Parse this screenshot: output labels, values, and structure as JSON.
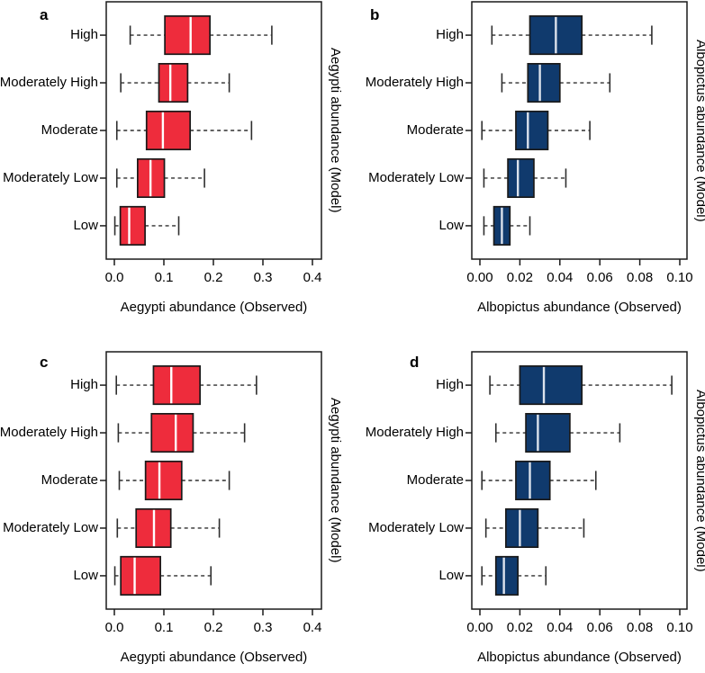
{
  "figure": {
    "background": "#ffffff",
    "axis_color": "#1a1a1a",
    "whisker_color": "#2e2e2e"
  },
  "chart_data": [
    {
      "type": "boxplot",
      "orientation": "horizontal",
      "panel_letter": "a",
      "box_color": "#ee2c3c",
      "median_color": "#ffffff",
      "xlabel": "Aegypti abundance (Observed)",
      "ylabel_right": "Aegypti abundance (Model)",
      "xlim": [
        0.0,
        0.4
      ],
      "grid": false,
      "xticks": [
        "0.0",
        "0.1",
        "0.2",
        "0.3",
        "0.4"
      ],
      "xtick_values": [
        0.0,
        0.1,
        0.2,
        0.3,
        0.4
      ],
      "categories": [
        "High",
        "Moderately High",
        "Moderate",
        "Moderately Low",
        "Low"
      ],
      "boxes": [
        {
          "category": "High",
          "whisker_low": 0.032,
          "q1": 0.102,
          "median": 0.154,
          "q3": 0.193,
          "whisker_high": 0.318
        },
        {
          "category": "Moderately High",
          "whisker_low": 0.013,
          "q1": 0.09,
          "median": 0.113,
          "q3": 0.148,
          "whisker_high": 0.232
        },
        {
          "category": "Moderate",
          "whisker_low": 0.005,
          "q1": 0.065,
          "median": 0.098,
          "q3": 0.153,
          "whisker_high": 0.277
        },
        {
          "category": "Moderately Low",
          "whisker_low": 0.005,
          "q1": 0.047,
          "median": 0.073,
          "q3": 0.101,
          "whisker_high": 0.182
        },
        {
          "category": "Low",
          "whisker_low": 0.001,
          "q1": 0.012,
          "median": 0.03,
          "q3": 0.062,
          "whisker_high": 0.13
        }
      ]
    },
    {
      "type": "boxplot",
      "orientation": "horizontal",
      "panel_letter": "b",
      "box_color": "#103a6d",
      "median_color": "#dce2ec",
      "xlabel": "Albopictus abundance (Observed)",
      "ylabel_right": "Albopictus abundance (Model)",
      "xlim": [
        0.0,
        0.1
      ],
      "grid": false,
      "xticks": [
        "0.00",
        "0.02",
        "0.04",
        "0.06",
        "0.08",
        "0.10"
      ],
      "xtick_values": [
        0.0,
        0.02,
        0.04,
        0.06,
        0.08,
        0.1
      ],
      "categories": [
        "High",
        "Moderately High",
        "Moderate",
        "Moderately Low",
        "Low"
      ],
      "boxes": [
        {
          "category": "High",
          "whisker_low": 0.006,
          "q1": 0.025,
          "median": 0.038,
          "q3": 0.051,
          "whisker_high": 0.086
        },
        {
          "category": "Moderately High",
          "whisker_low": 0.011,
          "q1": 0.024,
          "median": 0.03,
          "q3": 0.04,
          "whisker_high": 0.065
        },
        {
          "category": "Moderate",
          "whisker_low": 0.001,
          "q1": 0.018,
          "median": 0.024,
          "q3": 0.034,
          "whisker_high": 0.055
        },
        {
          "category": "Moderately Low",
          "whisker_low": 0.002,
          "q1": 0.014,
          "median": 0.019,
          "q3": 0.027,
          "whisker_high": 0.043
        },
        {
          "category": "Low",
          "whisker_low": 0.002,
          "q1": 0.007,
          "median": 0.011,
          "q3": 0.015,
          "whisker_high": 0.025
        }
      ]
    },
    {
      "type": "boxplot",
      "orientation": "horizontal",
      "panel_letter": "c",
      "box_color": "#ee2c3c",
      "median_color": "#ffffff",
      "xlabel": "Aegypti abundance (Observed)",
      "ylabel_right": "Aegypti abundance (Model)",
      "xlim": [
        0.0,
        0.4
      ],
      "grid": false,
      "xticks": [
        "0.0",
        "0.1",
        "0.2",
        "0.3",
        "0.4"
      ],
      "xtick_values": [
        0.0,
        0.1,
        0.2,
        0.3,
        0.4
      ],
      "categories": [
        "High",
        "Moderately High",
        "Moderate",
        "Moderately Low",
        "Low"
      ],
      "boxes": [
        {
          "category": "High",
          "whisker_low": 0.004,
          "q1": 0.079,
          "median": 0.115,
          "q3": 0.173,
          "whisker_high": 0.287
        },
        {
          "category": "Moderately High",
          "whisker_low": 0.008,
          "q1": 0.075,
          "median": 0.124,
          "q3": 0.159,
          "whisker_high": 0.263
        },
        {
          "category": "Moderate",
          "whisker_low": 0.01,
          "q1": 0.063,
          "median": 0.091,
          "q3": 0.136,
          "whisker_high": 0.232
        },
        {
          "category": "Moderately Low",
          "whisker_low": 0.006,
          "q1": 0.044,
          "median": 0.08,
          "q3": 0.114,
          "whisker_high": 0.212
        },
        {
          "category": "Low",
          "whisker_low": 0.001,
          "q1": 0.013,
          "median": 0.041,
          "q3": 0.093,
          "whisker_high": 0.195
        }
      ]
    },
    {
      "type": "boxplot",
      "orientation": "horizontal",
      "panel_letter": "d",
      "box_color": "#103a6d",
      "median_color": "#dce2ec",
      "xlabel": "Albopictus abundance (Observed)",
      "ylabel_right": "Albopictus abundance (Model)",
      "xlim": [
        0.0,
        0.1
      ],
      "grid": false,
      "xticks": [
        "0.00",
        "0.02",
        "0.04",
        "0.06",
        "0.08",
        "0.10"
      ],
      "xtick_values": [
        0.0,
        0.02,
        0.04,
        0.06,
        0.08,
        0.1
      ],
      "categories": [
        "High",
        "Moderately High",
        "Moderate",
        "Moderately Low",
        "Low"
      ],
      "boxes": [
        {
          "category": "High",
          "whisker_low": 0.005,
          "q1": 0.02,
          "median": 0.032,
          "q3": 0.051,
          "whisker_high": 0.096
        },
        {
          "category": "Moderately High",
          "whisker_low": 0.008,
          "q1": 0.023,
          "median": 0.029,
          "q3": 0.045,
          "whisker_high": 0.07
        },
        {
          "category": "Moderate",
          "whisker_low": 0.001,
          "q1": 0.018,
          "median": 0.025,
          "q3": 0.035,
          "whisker_high": 0.058
        },
        {
          "category": "Moderately Low",
          "whisker_low": 0.003,
          "q1": 0.013,
          "median": 0.02,
          "q3": 0.029,
          "whisker_high": 0.052
        },
        {
          "category": "Low",
          "whisker_low": 0.001,
          "q1": 0.008,
          "median": 0.012,
          "q3": 0.019,
          "whisker_high": 0.033
        }
      ]
    }
  ]
}
